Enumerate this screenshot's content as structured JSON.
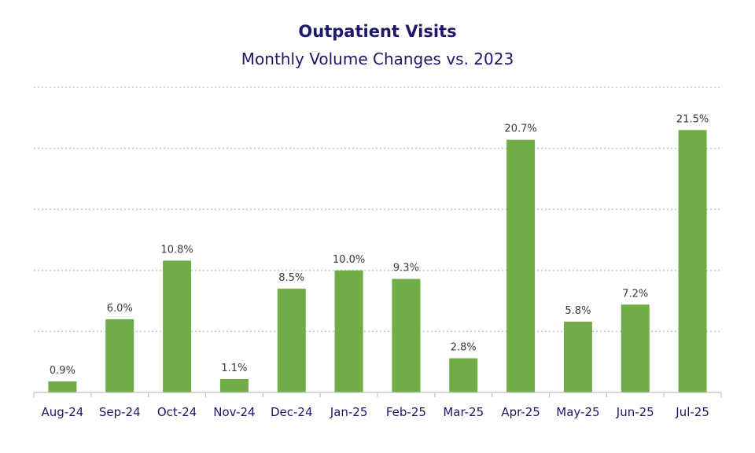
{
  "chart_data": {
    "type": "bar",
    "title": "Outpatient Visits",
    "subtitle": "Monthly Volume Changes vs. 2023",
    "categories": [
      "Aug-24",
      "Sep-24",
      "Oct-24",
      "Nov-24",
      "Dec-24",
      "Jan-25",
      "Feb-25",
      "Mar-25",
      "Apr-25",
      "May-25",
      "Jun-25",
      "Jul-25"
    ],
    "values": [
      0.9,
      6.0,
      10.8,
      1.1,
      8.5,
      10.0,
      9.3,
      2.8,
      20.7,
      5.8,
      7.2,
      21.5
    ],
    "data_labels": [
      "0.9%",
      "6.0%",
      "10.8%",
      "1.1%",
      "8.5%",
      "10.0%",
      "9.3%",
      "2.8%",
      "20.7%",
      "5.8%",
      "7.2%",
      "21.5%"
    ],
    "xlabel": "",
    "ylabel": "",
    "ylim": [
      0,
      25
    ],
    "grid": true,
    "legend": "none",
    "bar_color": "#70ad47",
    "title_color": "#1f1767"
  }
}
